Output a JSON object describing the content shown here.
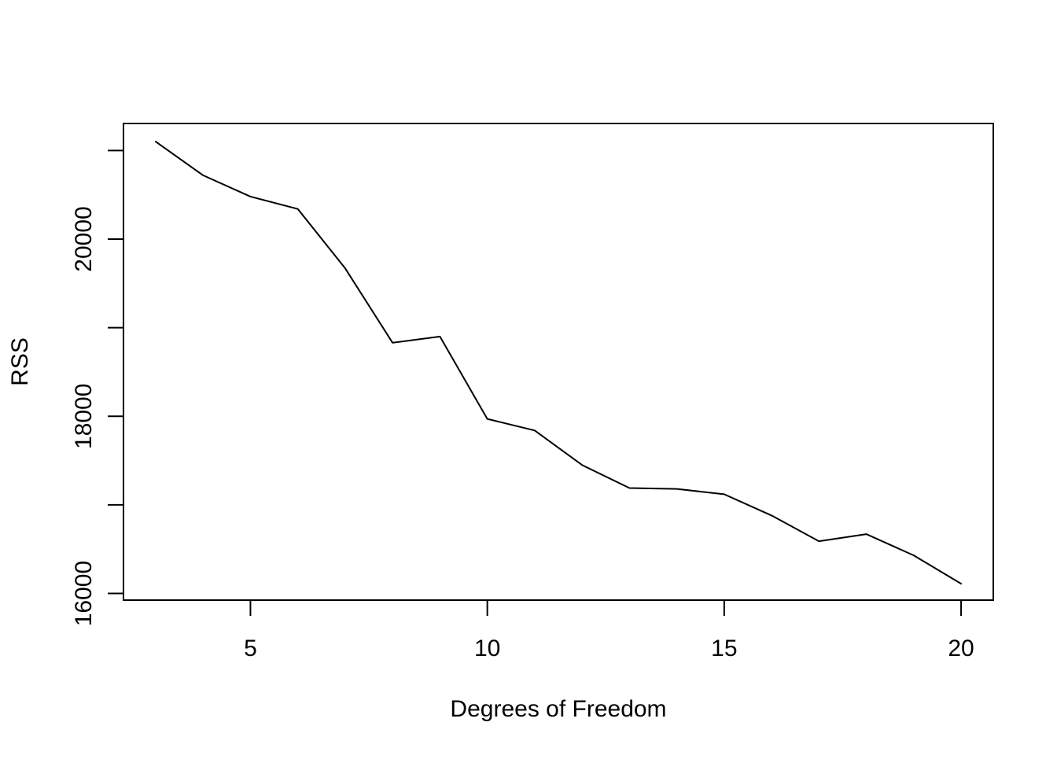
{
  "chart_data": {
    "type": "line",
    "title": "",
    "xlabel": "Degrees of Freedom",
    "ylabel": "RSS",
    "x": [
      3,
      4,
      5,
      6,
      7,
      8,
      9,
      10,
      11,
      12,
      13,
      14,
      15,
      16,
      17,
      18,
      19,
      20
    ],
    "series": [
      {
        "values": [
          21100,
          20720,
          20480,
          20340,
          19670,
          18830,
          18900,
          17970,
          17840,
          17450,
          17190,
          17180,
          17120,
          16880,
          16590,
          16670,
          16430,
          16110
        ]
      }
    ],
    "xticks": [
      5,
      10,
      15,
      20
    ],
    "xtick_labels": [
      "5",
      "10",
      "15",
      "20"
    ],
    "yticks": [
      16000,
      17000,
      18000,
      19000,
      20000,
      21000
    ],
    "ytick_labels": [
      "16000",
      "",
      "18000",
      "",
      "20000",
      ""
    ],
    "xlim": [
      2.32,
      20.68
    ],
    "ylim": [
      15925,
      21305
    ],
    "grid": false,
    "legend": "none",
    "colors": {
      "line": "#000000",
      "axes": "#000000",
      "background": "#ffffff"
    }
  }
}
